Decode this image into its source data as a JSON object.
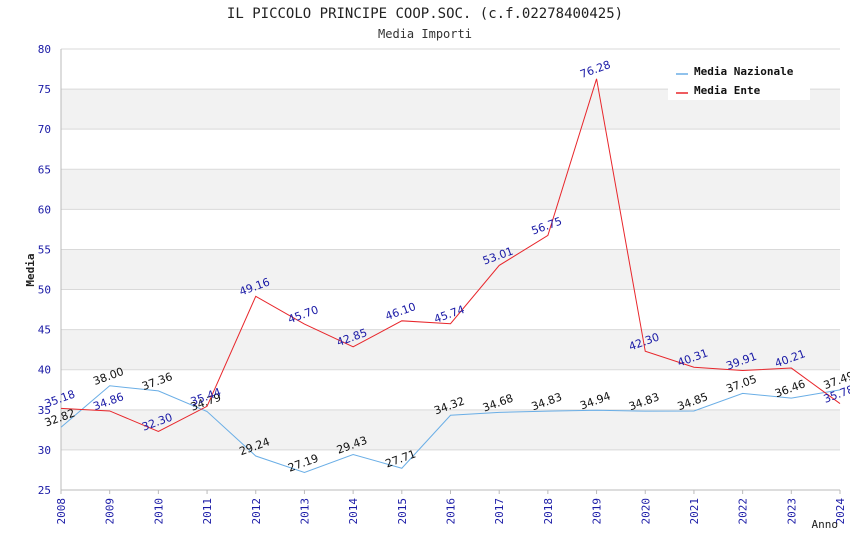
{
  "chart_data": {
    "type": "line",
    "title": "IL PICCOLO PRINCIPE COOP.SOC. (c.f.02278400425)",
    "subtitle": "Media Importi",
    "xlabel": "Anno",
    "ylabel": "Media",
    "categories": [
      "2008",
      "2009",
      "2010",
      "2011",
      "2012",
      "2013",
      "2014",
      "2015",
      "2016",
      "2017",
      "2018",
      "2019",
      "2020",
      "2021",
      "2022",
      "2023",
      "2024"
    ],
    "ylim": [
      25,
      80
    ],
    "yticks": [
      25,
      30,
      35,
      40,
      45,
      50,
      55,
      60,
      65,
      70,
      75,
      80
    ],
    "grid": true,
    "legend_position": "top-right",
    "series": [
      {
        "name": "Media Nazionale",
        "color": "#6aaee6",
        "values": [
          32.82,
          38.0,
          37.36,
          34.79,
          29.24,
          27.19,
          29.43,
          27.71,
          34.32,
          34.68,
          34.83,
          34.94,
          34.83,
          34.85,
          37.05,
          36.46,
          37.49
        ],
        "labels": [
          "32.82",
          "38.00",
          "37.36",
          "34.79",
          "29.24",
          "27.19",
          "29.43",
          "27.71",
          "34.32",
          "34.68",
          "34.83",
          "34.94",
          "34.83",
          "34.85",
          "37.05",
          "36.46",
          "37.49"
        ]
      },
      {
        "name": "Media Ente",
        "color": "#e8262b",
        "values": [
          35.18,
          34.86,
          32.3,
          35.44,
          49.16,
          45.7,
          42.85,
          46.1,
          45.74,
          53.01,
          56.75,
          76.28,
          42.3,
          40.31,
          39.91,
          40.21,
          35.78
        ],
        "labels": [
          "35.18",
          "34.86",
          "32.30",
          "35.44",
          "49.16",
          "45.70",
          "42.85",
          "46.10",
          "45.74",
          "53.01",
          "56.75",
          "76.28",
          "42.30",
          "40.31",
          "39.91",
          "40.21",
          "35.78"
        ]
      }
    ]
  }
}
